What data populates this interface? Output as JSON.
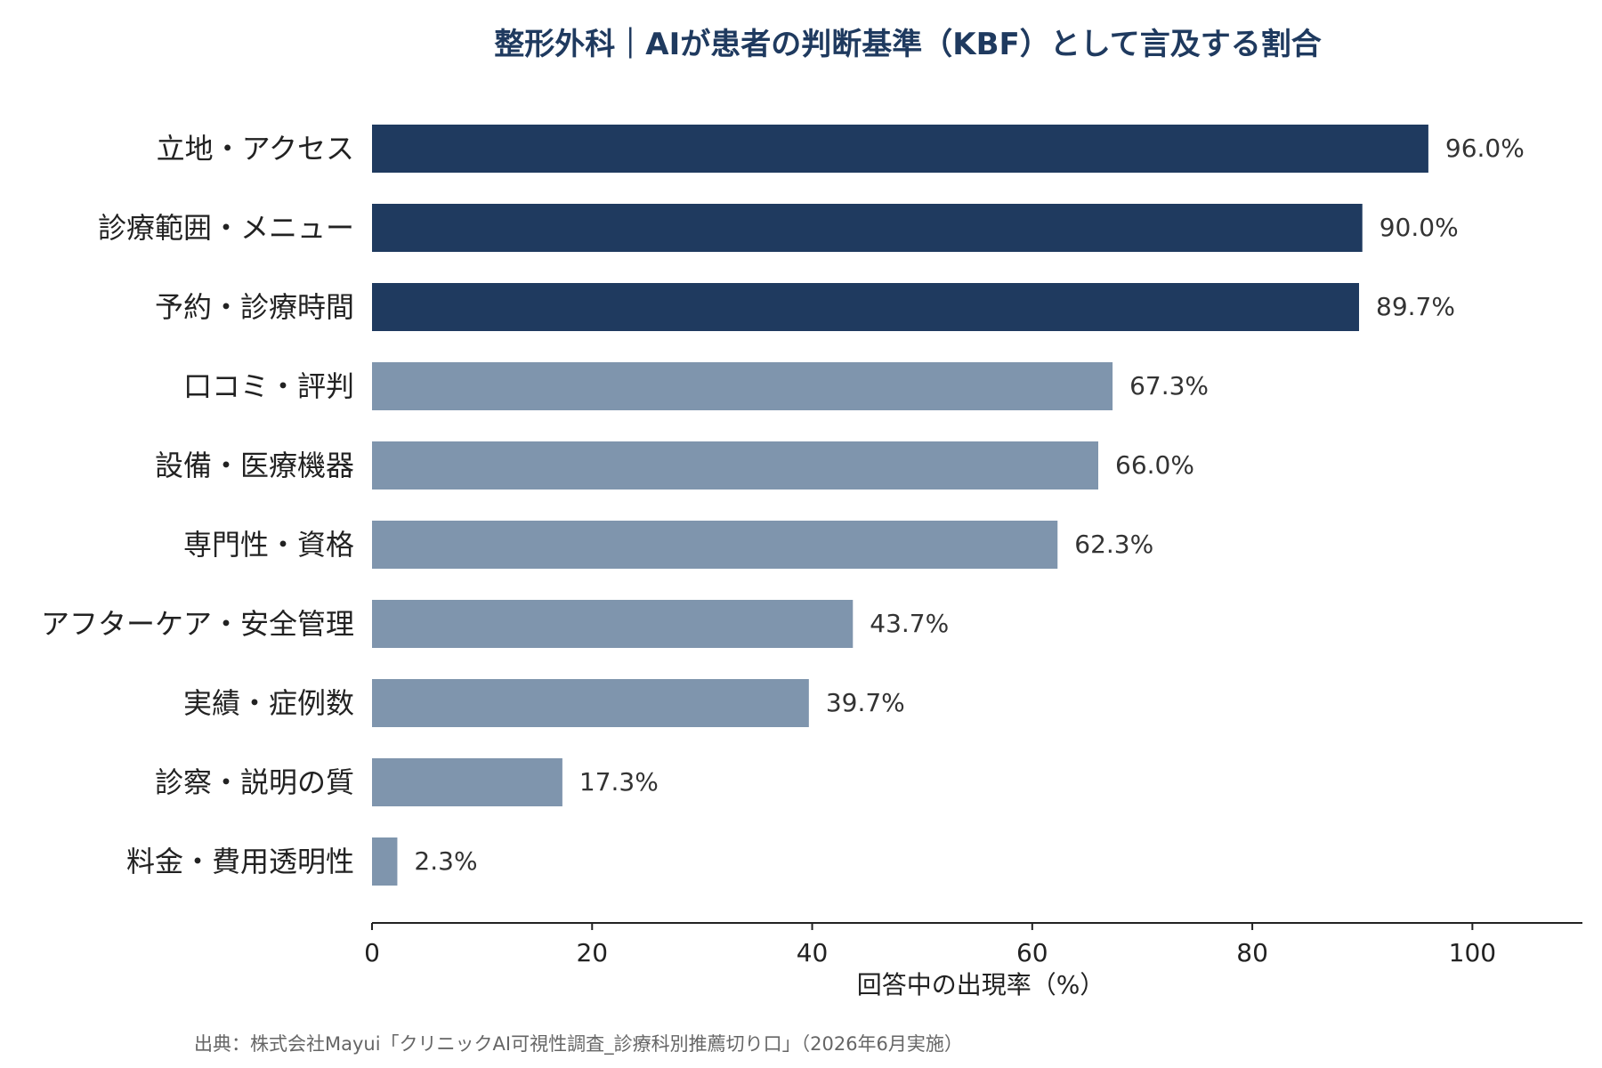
{
  "chart_data": {
    "type": "bar",
    "orientation": "horizontal",
    "title": "整形外科｜AIが患者の判断基準（KBF）として言及する割合",
    "xlabel": "回答中の出現率（%）",
    "ylabel": "",
    "xlim": [
      0,
      110
    ],
    "xticks": [
      0,
      20,
      40,
      60,
      80,
      100
    ],
    "categories": [
      "立地・アクセス",
      "診療範囲・メニュー",
      "予約・診療時間",
      "口コミ・評判",
      "設備・医療機器",
      "専門性・資格",
      "アフターケア・安全管理",
      "実績・症例数",
      "診察・説明の質",
      "料金・費用透明性"
    ],
    "values": [
      96.0,
      90.0,
      89.7,
      67.3,
      66.0,
      62.3,
      43.7,
      39.7,
      17.3,
      2.3
    ],
    "data_labels": [
      "96.0%",
      "90.0%",
      "89.7%",
      "67.3%",
      "66.0%",
      "62.3%",
      "43.7%",
      "39.7%",
      "17.3%",
      "2.3%"
    ],
    "highlight_count": 3,
    "colors": {
      "highlight": "#1f3a5f",
      "normal": "#7f95ad",
      "axis": "#222222",
      "title": "#1f3a5f"
    },
    "grid": false
  },
  "footer": {
    "source": "出典：株式会社Mayui「クリニックAI可視性調査_診療科別推薦切り口」（2026年6月実施）"
  }
}
